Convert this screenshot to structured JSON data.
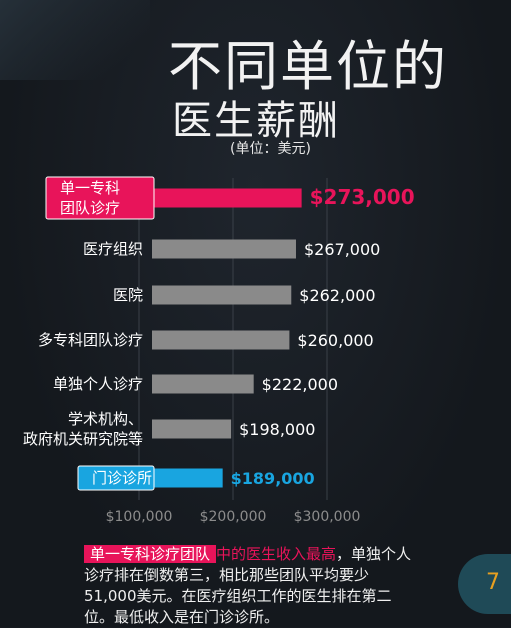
{
  "title_line1": "不同单位的",
  "title_line2": "医生薪酬",
  "unit_label": "(单位：美元)",
  "chart_data": {
    "type": "bar",
    "orientation": "horizontal",
    "categories": [
      "单一专科\n团队诊疗",
      "医疗组织",
      "医院",
      "多专科团队诊疗",
      "单独个人诊疗",
      "学术机构、\n政府机关研究院等",
      "门诊诊所"
    ],
    "values": [
      273000,
      267000,
      262000,
      260000,
      222000,
      198000,
      189000
    ],
    "value_labels": [
      "$273,000",
      "$267,000",
      "$262,000",
      "$260,000",
      "$222,000",
      "$198,000",
      "$189,000"
    ],
    "xlim": [
      0,
      300000
    ],
    "xticks": [
      100000,
      200000,
      300000
    ],
    "xtick_labels": [
      "$100,000",
      "$200,000",
      "$300,000"
    ],
    "highlight": [
      {
        "index": 0,
        "color": "#e8145a"
      },
      {
        "index": 6,
        "color": "#19a5e0"
      }
    ],
    "bar_color": "#8a8a8a",
    "grid": true
  },
  "callout": {
    "highlight": "单一专科诊疗团队",
    "pink_text": "中的医生收入最高",
    "rest": "，单独个人诊疗排在倒数第三，相比那些团队平均要少51,000美元。在医疗组织工作的医生排在第二位。最低收入是在门诊诊所。"
  },
  "page_number": "7",
  "colors": {
    "pink": "#e8145a",
    "blue": "#19a5e0",
    "gray": "#8a8a8a",
    "background": "#161a20",
    "page_accent": "#e8a020"
  }
}
